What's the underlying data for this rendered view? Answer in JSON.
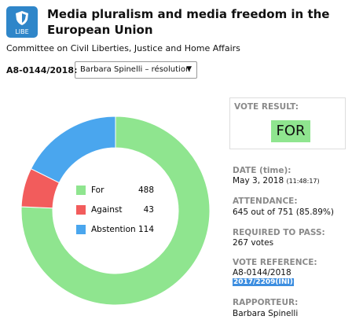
{
  "header": {
    "badge": "LIBE",
    "title": "Media pluralism and media freedom in the European Union",
    "committee": "Committee on Civil Liberties, Justice and Home Affairs",
    "reference_label": "A8-0144/2018:",
    "selected_option": "Barbara Spinelli – résolution"
  },
  "chart_data": {
    "type": "donut",
    "categories": [
      "For",
      "Against",
      "Abstention"
    ],
    "values": [
      488,
      43,
      114
    ],
    "colors": [
      "#8fe58f",
      "#f25c5c",
      "#4aa6ee"
    ]
  },
  "details": {
    "result_label": "VOTE RESULT:",
    "result": "FOR",
    "date_label": "DATE (time):",
    "date": "May 3, 2018",
    "time": "(11:48:17)",
    "attendance_label": "ATTENDANCE:",
    "attendance": "645 out of 751 (85.89%)",
    "required_label": "REQUIRED TO PASS:",
    "required": "267 votes",
    "reference_label": "VOTE REFERENCE:",
    "reference": "A8-0144/2018",
    "procedure": "2017/2209(INI)",
    "rapporteur_label": "RAPPORTEUR:",
    "rapporteur": "Barbara Spinelli"
  }
}
